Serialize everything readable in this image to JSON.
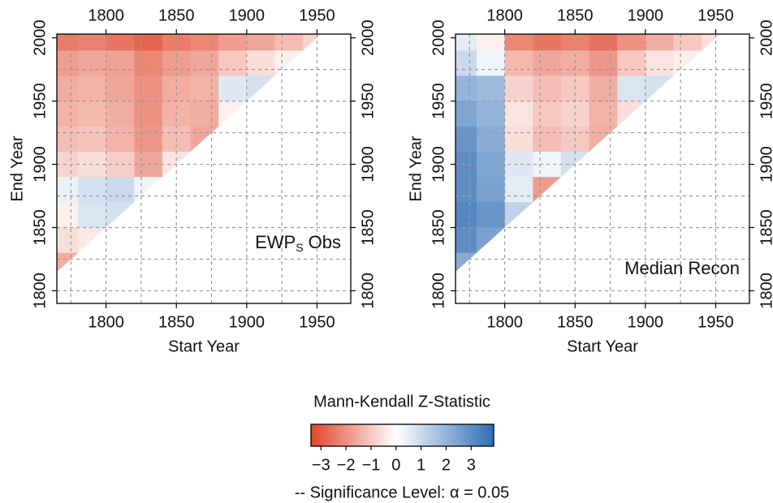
{
  "chart_data": [
    {
      "type": "heatmap",
      "label": {
        "text": "EWP",
        "sub": "S",
        "rest": " Obs"
      },
      "xlabel": "Start Year",
      "ylabel": "End Year",
      "x": [
        1770,
        1790,
        1810,
        1830,
        1850,
        1870,
        1890,
        1910,
        1930,
        1950
      ],
      "y": [
        2000,
        1980,
        1960,
        1940,
        1920,
        1900,
        1880,
        1860,
        1840,
        1820,
        1800
      ],
      "z": [
        [
          -2.4,
          -2.3,
          -2.5,
          -2.8,
          -2.4,
          -2.2,
          -1.8,
          -1.6,
          -1.2,
          -0.8
        ],
        [
          -1.8,
          -1.6,
          -1.7,
          -2.2,
          -1.8,
          -1.6,
          -1.0,
          -0.6,
          -0.3,
          null
        ],
        [
          -1.5,
          -1.4,
          -1.6,
          -2.0,
          -1.5,
          -1.4,
          0.6,
          0.8,
          0.7,
          null
        ],
        [
          -1.4,
          -1.3,
          -1.5,
          -2.0,
          -1.4,
          -1.5,
          -0.3,
          0.2,
          null,
          null
        ],
        [
          -1.2,
          -1.1,
          -1.4,
          -1.9,
          -1.2,
          -1.6,
          -0.2,
          null,
          null,
          null
        ],
        [
          -0.8,
          -0.6,
          -0.9,
          -1.6,
          -0.5,
          -0.6,
          null,
          null,
          null,
          null
        ],
        [
          0.4,
          0.8,
          1.0,
          0.3,
          0.6,
          null,
          null,
          null,
          null,
          null
        ],
        [
          -0.3,
          0.7,
          0.8,
          -1.2,
          null,
          null,
          null,
          null,
          null,
          null
        ],
        [
          -0.6,
          -0.4,
          -0.3,
          null,
          null,
          null,
          null,
          null,
          null,
          null
        ],
        [
          -1.5,
          -0.8,
          null,
          null,
          null,
          null,
          null,
          null,
          null,
          null
        ],
        [
          -1.0,
          null,
          null,
          null,
          null,
          null,
          null,
          null,
          null,
          null
        ]
      ],
      "xlim": [
        1765,
        1974
      ],
      "ylim": [
        1790,
        2003
      ],
      "xticks": [
        1800,
        1850,
        1900,
        1950
      ],
      "yticks": [
        1800,
        1850,
        1900,
        1950,
        2000
      ],
      "xgrid": [
        1775,
        1800,
        1825,
        1850,
        1875,
        1900,
        1925,
        1950
      ],
      "ygrid": [
        1800,
        1825,
        1850,
        1875,
        1900,
        1925,
        1950,
        1975
      ]
    },
    {
      "type": "heatmap",
      "label": {
        "text": "Median Recon"
      },
      "xlabel": "Start Year",
      "ylabel": "End Year",
      "x": [
        1770,
        1790,
        1810,
        1830,
        1850,
        1870,
        1890,
        1910,
        1930,
        1950
      ],
      "y": [
        2000,
        1980,
        1960,
        1940,
        1920,
        1900,
        1880,
        1860,
        1840,
        1820,
        1800
      ],
      "z": [
        [
          0.5,
          -0.3,
          -2.2,
          -2.5,
          -2.3,
          -2.6,
          -2.0,
          -1.5,
          -1.0,
          -0.6
        ],
        [
          1.0,
          0.3,
          -1.3,
          -1.6,
          -1.5,
          -1.9,
          -1.0,
          -0.5,
          -0.3,
          null
        ],
        [
          2.0,
          1.8,
          -0.8,
          -1.2,
          -1.0,
          -1.5,
          0.7,
          0.8,
          0.5,
          null
        ],
        [
          2.4,
          2.0,
          -0.5,
          -1.0,
          -0.8,
          -1.4,
          -0.6,
          -0.3,
          null,
          null
        ],
        [
          2.8,
          2.2,
          -0.6,
          -1.2,
          -1.0,
          -1.5,
          -0.4,
          null,
          null,
          null
        ],
        [
          3.0,
          2.4,
          0.6,
          0.3,
          0.8,
          -0.5,
          null,
          null,
          null,
          null
        ],
        [
          3.0,
          2.5,
          0.5,
          -1.8,
          -1.0,
          null,
          null,
          null,
          null,
          null
        ],
        [
          3.2,
          2.8,
          1.2,
          -0.8,
          null,
          null,
          null,
          null,
          null,
          null
        ],
        [
          3.0,
          2.5,
          1.5,
          null,
          null,
          null,
          null,
          null,
          null,
          null
        ],
        [
          2.2,
          1.8,
          null,
          null,
          null,
          null,
          null,
          null,
          null,
          null
        ],
        [
          1.0,
          null,
          null,
          null,
          null,
          null,
          null,
          null,
          null,
          null
        ]
      ],
      "xlim": [
        1765,
        1974
      ],
      "ylim": [
        1790,
        2003
      ],
      "xticks": [
        1800,
        1850,
        1900,
        1950
      ],
      "yticks": [
        1800,
        1850,
        1900,
        1950,
        2000
      ],
      "xgrid": [
        1775,
        1800,
        1825,
        1850,
        1875,
        1900,
        1925,
        1950
      ],
      "ygrid": [
        1800,
        1825,
        1850,
        1875,
        1900,
        1925,
        1950,
        1975
      ]
    }
  ],
  "colorbar": {
    "title": "Mann-Kendall Z-Statistic",
    "clim": [
      -3.4,
      3.9
    ],
    "colors": [
      "#e0452a",
      "#ffffff",
      "#2f6cb4"
    ],
    "ticks": [
      {
        "value": -3,
        "label": "−3"
      },
      {
        "value": -2,
        "label": "−2"
      },
      {
        "value": -1,
        "label": "−1"
      },
      0,
      1,
      2,
      3
    ]
  },
  "note": "-- Significance Level: α = 0.05"
}
